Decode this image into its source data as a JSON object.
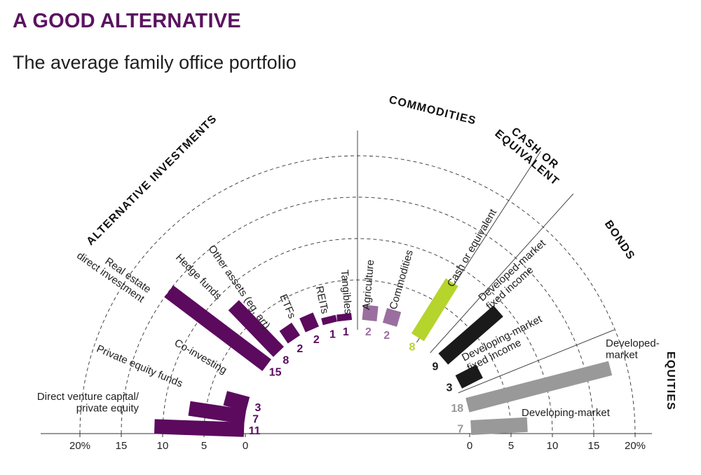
{
  "title": "A GOOD ALTERNATIVE",
  "subtitle": "The average family office portfolio",
  "colors": {
    "alternative": "#5b0a5e",
    "commodities": "#9a6f9f",
    "cash": "#b5d42c",
    "bonds": "#1a1a1a",
    "equities": "#999999",
    "grid": "#333333"
  },
  "chart_data": {
    "type": "bar",
    "unit": "%",
    "xlim": [
      0,
      20
    ],
    "axis_ticks_left": [
      "20%",
      "15",
      "10",
      "5",
      "0"
    ],
    "axis_ticks_right": [
      "0",
      "5",
      "10",
      "15",
      "20%"
    ],
    "groups": [
      {
        "name": "ALTERNATIVE INVESTMENTS",
        "color_key": "alternative",
        "items": [
          {
            "label": "Direct venture capital/\nprivate equity",
            "value": 11
          },
          {
            "label": "Private equity funds",
            "value": 7
          },
          {
            "label": "Co-investing",
            "value": 3
          },
          {
            "label": "Real estate\ndirect investment",
            "value": 15
          },
          {
            "label": "Hedge funds",
            "value": 8
          },
          {
            "label": "Other assets (eg, art)",
            "value": 2
          },
          {
            "label": "ETFs",
            "value": 2
          },
          {
            "label": "REITs",
            "value": 1
          },
          {
            "label": "Tangibles",
            "value": 1
          }
        ]
      },
      {
        "name": "COMMODITIES",
        "color_key": "commodities",
        "items": [
          {
            "label": "Agriculture",
            "value": 2
          },
          {
            "label": "Commodities",
            "value": 2
          }
        ]
      },
      {
        "name": "CASH OR\nEQUIVALENT",
        "color_key": "cash",
        "items": [
          {
            "label": "Cash or equivalent",
            "value": 8
          }
        ]
      },
      {
        "name": "BONDS",
        "color_key": "bonds",
        "items": [
          {
            "label": "Developed-market\nfixed income",
            "value": 9
          },
          {
            "label": "Developing-market\nfixed income",
            "value": 3
          }
        ]
      },
      {
        "name": "EQUITIES",
        "color_key": "equities",
        "items": [
          {
            "label": "Developed-\nmarket",
            "value": 18
          },
          {
            "label": "Developing-market",
            "value": 7
          }
        ]
      }
    ]
  }
}
